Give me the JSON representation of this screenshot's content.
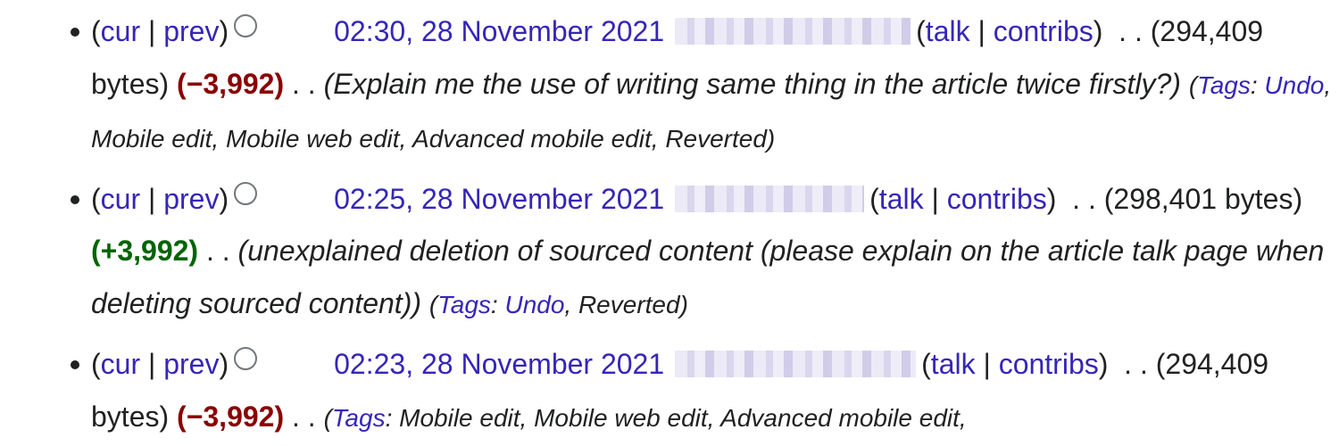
{
  "entries": [
    {
      "cur": "cur",
      "prev": "prev",
      "timestamp": "02:30, 28 November 2021",
      "talk": "talk",
      "contribs": "contribs",
      "bytes": "(294,409 bytes)",
      "diff": "(−3,992)",
      "diff_kind": "negative",
      "comment": "(Explain me the use of writing same thing in the article twice firstly?)",
      "tags_label": "Tags",
      "tags_link": "Undo",
      "tags_rest": ", Mobile edit, Mobile web edit, Advanced mobile edit, Reverted)"
    },
    {
      "cur": "cur",
      "prev": "prev",
      "timestamp": "02:25, 28 November 2021",
      "talk": "talk",
      "contribs": "contribs",
      "bytes": "(298,401 bytes)",
      "diff": "(+3,992)",
      "diff_kind": "positive",
      "comment": "(unexplained deletion of sourced content (please explain on the article talk page when deleting sourced content))",
      "tags_label": "Tags",
      "tags_link": "Undo",
      "tags_rest": ", Reverted)"
    },
    {
      "cur": "cur",
      "prev": "prev",
      "timestamp": "02:23, 28 November 2021",
      "talk": "talk",
      "contribs": "contribs",
      "bytes": "(294,409 bytes)",
      "diff": "(−3,992)",
      "diff_kind": "negative",
      "comment": "",
      "tags_label": "Tags",
      "tags_link": "",
      "tags_rest": ": Mobile edit, Mobile web edit, Advanced mobile edit,"
    }
  ],
  "colors": {
    "link": "#3526b8",
    "negative": "#8b0000",
    "positive": "#006400",
    "text": "#202122"
  }
}
